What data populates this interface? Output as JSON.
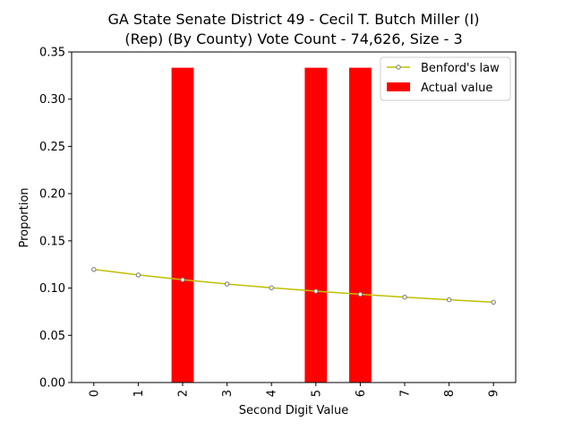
{
  "chart_data": {
    "type": "bar",
    "title_line1": "GA State Senate District 49 - Cecil T. Butch Miller (I)",
    "title_line2": "(Rep) (By County) Vote Count - 74,626, Size - 3",
    "xlabel": "Second Digit Value",
    "ylabel": "Proportion",
    "categories": [
      "0",
      "1",
      "2",
      "3",
      "4",
      "5",
      "6",
      "7",
      "8",
      "9"
    ],
    "yticks": [
      "0.00",
      "0.05",
      "0.10",
      "0.15",
      "0.20",
      "0.25",
      "0.30",
      "0.35"
    ],
    "ylim": [
      0,
      0.35
    ],
    "grid": false,
    "legend_position": "top-right",
    "series": [
      {
        "name": "Actual value",
        "kind": "bar",
        "color": "#ff0000",
        "values": [
          0,
          0,
          0.3333,
          0,
          0,
          0.3333,
          0.3333,
          0,
          0,
          0
        ]
      },
      {
        "name": "Benford's law",
        "kind": "line",
        "color": "#bfbf00",
        "values": [
          0.1197,
          0.1139,
          0.1088,
          0.1043,
          0.1003,
          0.0967,
          0.0934,
          0.0904,
          0.0876,
          0.085
        ]
      }
    ]
  }
}
